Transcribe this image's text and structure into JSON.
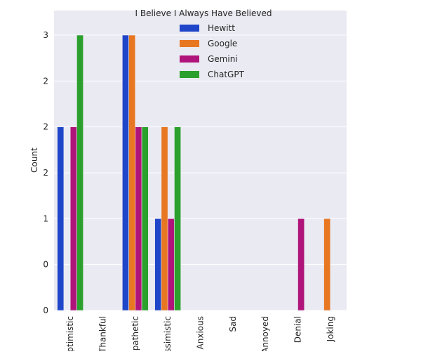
{
  "chart_data": {
    "type": "bar",
    "ylabel": "Count",
    "xlabel": "",
    "legend_title": "I Believe I Always Have Believed",
    "legend_position": "top-center",
    "grid": true,
    "ylim": [
      0,
      3
    ],
    "ytick_labels": [
      "0",
      "0",
      "1",
      "2",
      "2",
      "2",
      "3"
    ],
    "categories": [
      "Optimistic",
      "Thankful",
      "Empathetic",
      "Pessimistic",
      "Anxious",
      "Sad",
      "Annoyed",
      "Denial",
      "Joking"
    ],
    "series": [
      {
        "name": "Hewitt",
        "color": "#1f45c8",
        "values": [
          2,
          0,
          3,
          1,
          0,
          0,
          0,
          0,
          0
        ]
      },
      {
        "name": "Google",
        "color": "#e87722",
        "values": [
          0,
          0,
          3,
          2,
          0,
          0,
          0,
          0,
          1
        ]
      },
      {
        "name": "Gemini",
        "color": "#b0147a",
        "values": [
          2,
          0,
          2,
          1,
          0,
          0,
          0,
          1,
          0
        ]
      },
      {
        "name": "ChatGPT",
        "color": "#2ca02c",
        "values": [
          3,
          0,
          2,
          2,
          0,
          0,
          0,
          0,
          0
        ]
      }
    ]
  }
}
